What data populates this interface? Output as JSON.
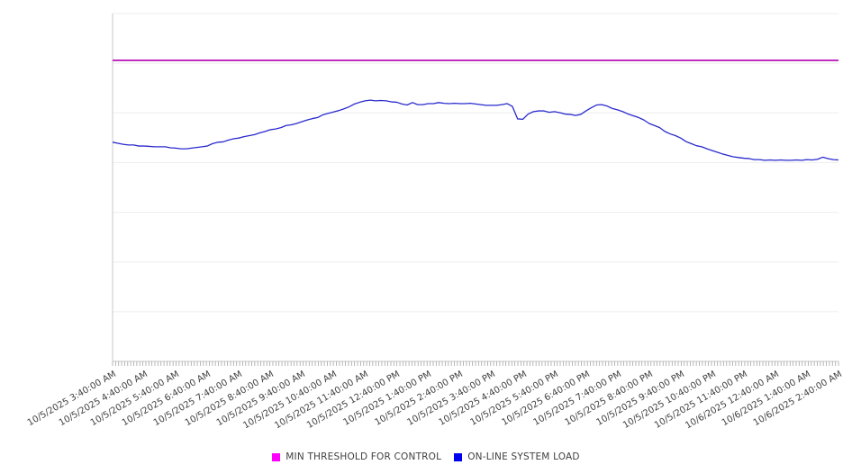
{
  "chart_data": {
    "type": "line",
    "title": "",
    "x_tick_labels": [
      "10/5/2025 3:40:00 AM",
      "10/5/2025 4:40:00 AM",
      "10/5/2025 5:40:00 AM",
      "10/5/2025 6:40:00 AM",
      "10/5/2025 7:40:00 AM",
      "10/5/2025 8:40:00 AM",
      "10/5/2025 9:40:00 AM",
      "10/5/2025 10:40:00 AM",
      "10/5/2025 11:40:00 AM",
      "10/5/2025 12:40:00 PM",
      "10/5/2025 1:40:00 PM",
      "10/5/2025 2:40:00 PM",
      "10/5/2025 3:40:00 PM",
      "10/5/2025 4:40:00 PM",
      "10/5/2025 5:40:00 PM",
      "10/5/2025 6:40:00 PM",
      "10/5/2025 7:40:00 PM",
      "10/5/2025 8:40:00 PM",
      "10/5/2025 9:40:00 PM",
      "10/5/2025 10:40:00 PM",
      "10/5/2025 11:40:00 PM",
      "10/6/2025 12:40:00 AM",
      "10/6/2025 1:40:00 AM",
      "10/6/2025 2:40:00 AM"
    ],
    "x_range": {
      "start": "10/5/2025 3:40:00 AM",
      "end": "10/6/2025 2:40:00 AM"
    },
    "point_interval_minutes": 10,
    "value_axis": {
      "min": 0,
      "max": 100,
      "labels_shown": false,
      "gridline_divisions": 7
    },
    "grid": "horizontal-only",
    "legend_position": "bottom-center",
    "series": [
      {
        "name": "MIN THRESHOLD FOR CONTROL",
        "type": "threshold-line",
        "color": "#c02ec0",
        "value": 86.5
      },
      {
        "name": "ON-LINE SYSTEM LOAD",
        "type": "line",
        "color": "#2a2ace",
        "values": [
          63.0,
          62.7,
          62.4,
          62.2,
          62.2,
          61.9,
          61.9,
          61.8,
          61.7,
          61.7,
          61.7,
          61.4,
          61.3,
          61.1,
          61.1,
          61.3,
          61.5,
          61.7,
          61.9,
          62.6,
          63.0,
          63.1,
          63.6,
          64.0,
          64.2,
          64.6,
          64.9,
          65.2,
          65.7,
          66.1,
          66.6,
          66.8,
          67.2,
          67.8,
          68.0,
          68.4,
          68.9,
          69.4,
          69.8,
          70.1,
          70.9,
          71.3,
          71.7,
          72.1,
          72.6,
          73.2,
          74.0,
          74.5,
          74.9,
          75.1,
          74.9,
          75.0,
          74.9,
          74.6,
          74.5,
          74.0,
          73.7,
          74.4,
          73.8,
          73.8,
          74.1,
          74.1,
          74.4,
          74.2,
          74.1,
          74.2,
          74.1,
          74.1,
          74.2,
          74.0,
          73.8,
          73.6,
          73.6,
          73.6,
          73.8,
          74.1,
          73.3,
          69.7,
          69.6,
          71.1,
          71.8,
          72.0,
          72.0,
          71.6,
          71.8,
          71.5,
          71.1,
          71.0,
          70.7,
          71.0,
          72.0,
          72.9,
          73.7,
          73.8,
          73.4,
          72.7,
          72.3,
          71.8,
          71.1,
          70.6,
          70.1,
          69.4,
          68.4,
          67.8,
          67.2,
          66.1,
          65.4,
          64.9,
          64.2,
          63.2,
          62.6,
          62.0,
          61.7,
          61.1,
          60.6,
          60.1,
          59.6,
          59.2,
          58.8,
          58.6,
          58.4,
          58.3,
          58.0,
          58.0,
          57.8,
          57.9,
          57.8,
          57.9,
          57.8,
          57.8,
          57.9,
          57.8,
          58.0,
          57.9,
          58.1,
          58.7,
          58.3,
          58.0,
          57.9
        ]
      }
    ]
  },
  "legend": {
    "items": [
      {
        "label": "MIN THRESHOLD FOR CONTROL",
        "marker_color": "#ff00ff"
      },
      {
        "label": "ON-LINE SYSTEM LOAD",
        "marker_color": "#0000f0"
      }
    ]
  }
}
